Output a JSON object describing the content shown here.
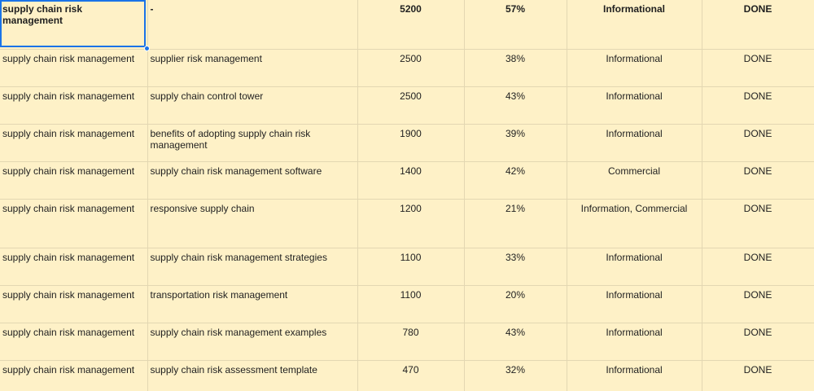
{
  "selection_color": "#1a73e8",
  "sheet_fill_color": "#fef1c7",
  "header": {
    "seed": "supply chain risk management",
    "keyword": "-",
    "volume": "5200",
    "percent": "57%",
    "intent": "Informational",
    "status": "DONE"
  },
  "rows": [
    {
      "seed": "supply chain risk management",
      "keyword": "supplier risk management",
      "volume": "2500",
      "percent": "38%",
      "intent": "Informational",
      "status": "DONE"
    },
    {
      "seed": "supply chain risk management",
      "keyword": "supply chain control tower",
      "volume": "2500",
      "percent": "43%",
      "intent": "Informational",
      "status": "DONE"
    },
    {
      "seed": "supply chain risk management",
      "keyword": "benefits of adopting supply chain risk management",
      "volume": "1900",
      "percent": "39%",
      "intent": "Informational",
      "status": "DONE"
    },
    {
      "seed": "supply chain risk management",
      "keyword": "supply chain risk management software",
      "volume": "1400",
      "percent": "42%",
      "intent": "Commercial",
      "status": "DONE"
    },
    {
      "seed": "supply chain risk management",
      "keyword": "responsive supply chain",
      "volume": "1200",
      "percent": "21%",
      "intent": "Information, Commercial",
      "status": "DONE"
    },
    {
      "seed": "supply chain risk management",
      "keyword": "supply chain risk management strategies",
      "volume": "1100",
      "percent": "33%",
      "intent": "Informational",
      "status": "DONE"
    },
    {
      "seed": "supply chain risk management",
      "keyword": "transportation risk management",
      "volume": "1100",
      "percent": "20%",
      "intent": "Informational",
      "status": "DONE"
    },
    {
      "seed": "supply chain risk management",
      "keyword": "supply chain risk management examples",
      "volume": "780",
      "percent": "43%",
      "intent": "Informational",
      "status": "DONE"
    },
    {
      "seed": "supply chain risk management",
      "keyword": "supply chain risk assessment template",
      "volume": "470",
      "percent": "32%",
      "intent": "Informational",
      "status": "DONE"
    }
  ]
}
